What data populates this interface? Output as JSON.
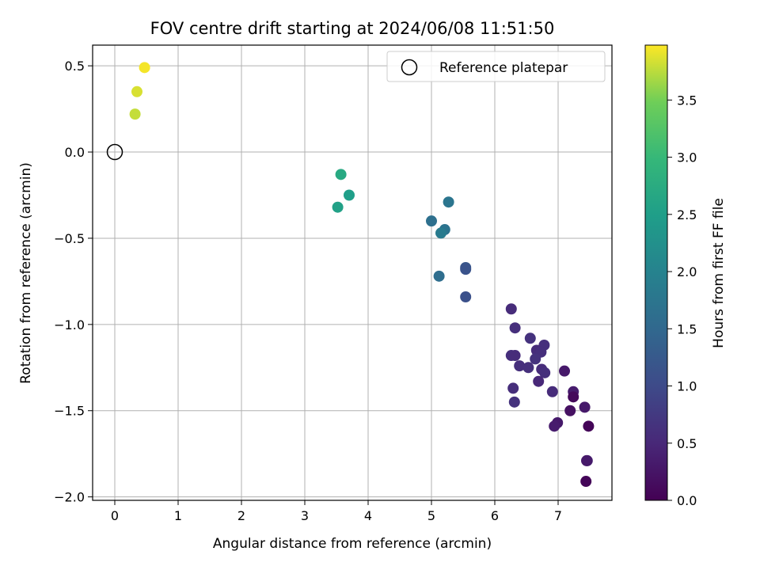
{
  "chart_data": {
    "type": "scatter",
    "title": "FOV centre drift starting at 2024/06/08 11:51:50",
    "xlabel": "Angular distance from reference (arcmin)",
    "ylabel": "Rotation from reference (arcmin)",
    "xlim": [
      -0.35,
      7.85
    ],
    "ylim": [
      -2.02,
      0.62
    ],
    "xticks": [
      0,
      1,
      2,
      3,
      4,
      5,
      6,
      7
    ],
    "xtick_labels": [
      "0",
      "1",
      "2",
      "3",
      "4",
      "5",
      "6",
      "7"
    ],
    "yticks": [
      0.5,
      0.0,
      -0.5,
      -1.0,
      -1.5,
      -2.0
    ],
    "ytick_labels": [
      "0.5",
      "0.0",
      "−0.5",
      "−1.0",
      "−1.5",
      "−2.0"
    ],
    "grid": true,
    "colormap": "viridis",
    "colorbar": {
      "label": "Hours from first FF file",
      "range": [
        0.0,
        3.98
      ],
      "ticks": [
        0.0,
        0.5,
        1.0,
        1.5,
        2.0,
        2.5,
        3.0,
        3.5
      ],
      "tick_labels": [
        "0.0",
        "0.5",
        "1.0",
        "1.5",
        "2.0",
        "2.5",
        "3.0",
        "3.5"
      ]
    },
    "legend": {
      "placement": "top-right",
      "entries": [
        "Reference platepar"
      ]
    },
    "reference_point": {
      "x": 0.0,
      "y": 0.0
    },
    "points": [
      {
        "x": 0.47,
        "y": 0.49,
        "t": 3.95
      },
      {
        "x": 0.35,
        "y": 0.35,
        "t": 3.85
      },
      {
        "x": 0.32,
        "y": 0.22,
        "t": 3.78
      },
      {
        "x": 3.57,
        "y": -0.13,
        "t": 2.7
      },
      {
        "x": 3.7,
        "y": -0.25,
        "t": 2.5
      },
      {
        "x": 3.52,
        "y": -0.32,
        "t": 2.55
      },
      {
        "x": 5.27,
        "y": -0.29,
        "t": 1.75
      },
      {
        "x": 5.0,
        "y": -0.4,
        "t": 1.65
      },
      {
        "x": 5.21,
        "y": -0.45,
        "t": 1.7
      },
      {
        "x": 5.15,
        "y": -0.47,
        "t": 1.85
      },
      {
        "x": 5.12,
        "y": -0.72,
        "t": 1.6
      },
      {
        "x": 5.54,
        "y": -0.67,
        "t": 1.2
      },
      {
        "x": 5.54,
        "y": -0.68,
        "t": 1.15
      },
      {
        "x": 5.54,
        "y": -0.84,
        "t": 1.1
      },
      {
        "x": 6.26,
        "y": -0.91,
        "t": 0.55
      },
      {
        "x": 6.32,
        "y": -1.02,
        "t": 0.6
      },
      {
        "x": 6.56,
        "y": -1.08,
        "t": 0.65
      },
      {
        "x": 6.78,
        "y": -1.12,
        "t": 0.6
      },
      {
        "x": 6.66,
        "y": -1.15,
        "t": 0.55
      },
      {
        "x": 6.73,
        "y": -1.16,
        "t": 0.6
      },
      {
        "x": 6.26,
        "y": -1.18,
        "t": 0.6
      },
      {
        "x": 6.32,
        "y": -1.18,
        "t": 0.55
      },
      {
        "x": 6.64,
        "y": -1.2,
        "t": 0.65
      },
      {
        "x": 6.39,
        "y": -1.24,
        "t": 0.6
      },
      {
        "x": 6.53,
        "y": -1.25,
        "t": 0.62
      },
      {
        "x": 6.74,
        "y": -1.26,
        "t": 0.55
      },
      {
        "x": 6.79,
        "y": -1.28,
        "t": 0.6
      },
      {
        "x": 7.1,
        "y": -1.27,
        "t": 0.3
      },
      {
        "x": 6.69,
        "y": -1.33,
        "t": 0.5
      },
      {
        "x": 6.29,
        "y": -1.37,
        "t": 0.58
      },
      {
        "x": 6.91,
        "y": -1.39,
        "t": 0.55
      },
      {
        "x": 7.24,
        "y": -1.39,
        "t": 0.35
      },
      {
        "x": 7.24,
        "y": -1.42,
        "t": 0.1
      },
      {
        "x": 6.31,
        "y": -1.45,
        "t": 0.65
      },
      {
        "x": 7.42,
        "y": -1.48,
        "t": 0.3
      },
      {
        "x": 7.19,
        "y": -1.5,
        "t": 0.2
      },
      {
        "x": 6.99,
        "y": -1.57,
        "t": 0.3
      },
      {
        "x": 6.94,
        "y": -1.59,
        "t": 0.35
      },
      {
        "x": 7.48,
        "y": -1.59,
        "t": 0.05
      },
      {
        "x": 7.46,
        "y": -1.79,
        "t": 0.4
      },
      {
        "x": 7.45,
        "y": -1.79,
        "t": 0.3
      },
      {
        "x": 7.44,
        "y": -1.91,
        "t": 0.05
      }
    ]
  }
}
